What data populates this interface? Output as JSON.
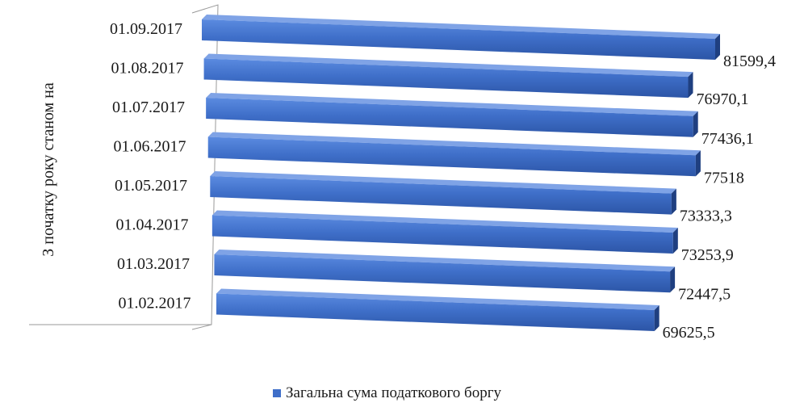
{
  "chart_data": {
    "type": "bar",
    "orientation": "horizontal",
    "three_d": true,
    "ylabel": "З початку року станом на",
    "categories": [
      "01.09.2017",
      "01.08.2017",
      "01.07.2017",
      "01.06.2017",
      "01.05.2017",
      "01.04.2017",
      "01.03.2017",
      "01.02.2017"
    ],
    "series": [
      {
        "name": "Загальна сума податкового боргу",
        "values": [
          81599.4,
          76970.1,
          77436.1,
          77518,
          73333.3,
          73253.9,
          72447.5,
          69625.5
        ],
        "value_labels": [
          "81599,4",
          "76970,1",
          "77436,1",
          "77518",
          "73333,3",
          "73253,9",
          "72447,5",
          "69625,5"
        ],
        "color": "#3f6fc9"
      }
    ],
    "legend_position": "bottom",
    "grid": false
  }
}
